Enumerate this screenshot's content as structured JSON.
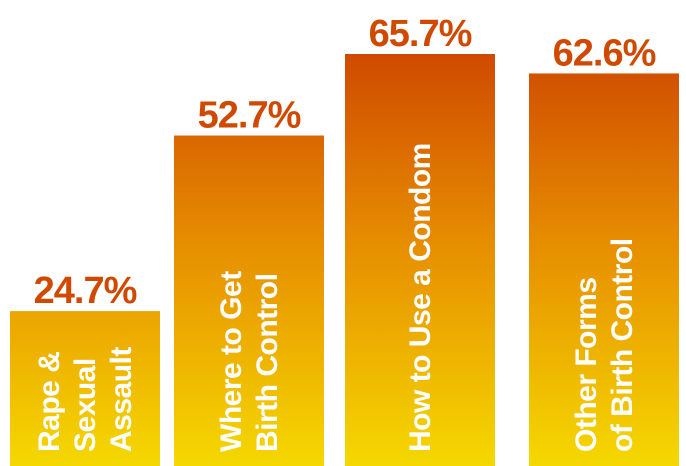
{
  "chart_data": {
    "type": "bar",
    "categories": [
      [
        "Rape &",
        "Sexual",
        "Assault"
      ],
      [
        "Where to Get",
        "Birth Control"
      ],
      [
        "How to Use a Condom"
      ],
      [
        "Other Forms",
        "of Birth Control"
      ]
    ],
    "values": [
      24.7,
      52.7,
      65.7,
      62.6
    ],
    "value_labels": [
      "24.7%",
      "52.7%",
      "65.7%",
      "62.6%"
    ],
    "unit": "%",
    "ylim": [
      0,
      70
    ],
    "grid": false,
    "legend": "none",
    "colors": {
      "bar_top": "#cf4a00",
      "bar_bottom": "#f5d800",
      "value_text": "#cf4a00",
      "category_text": "#ffffff"
    }
  }
}
